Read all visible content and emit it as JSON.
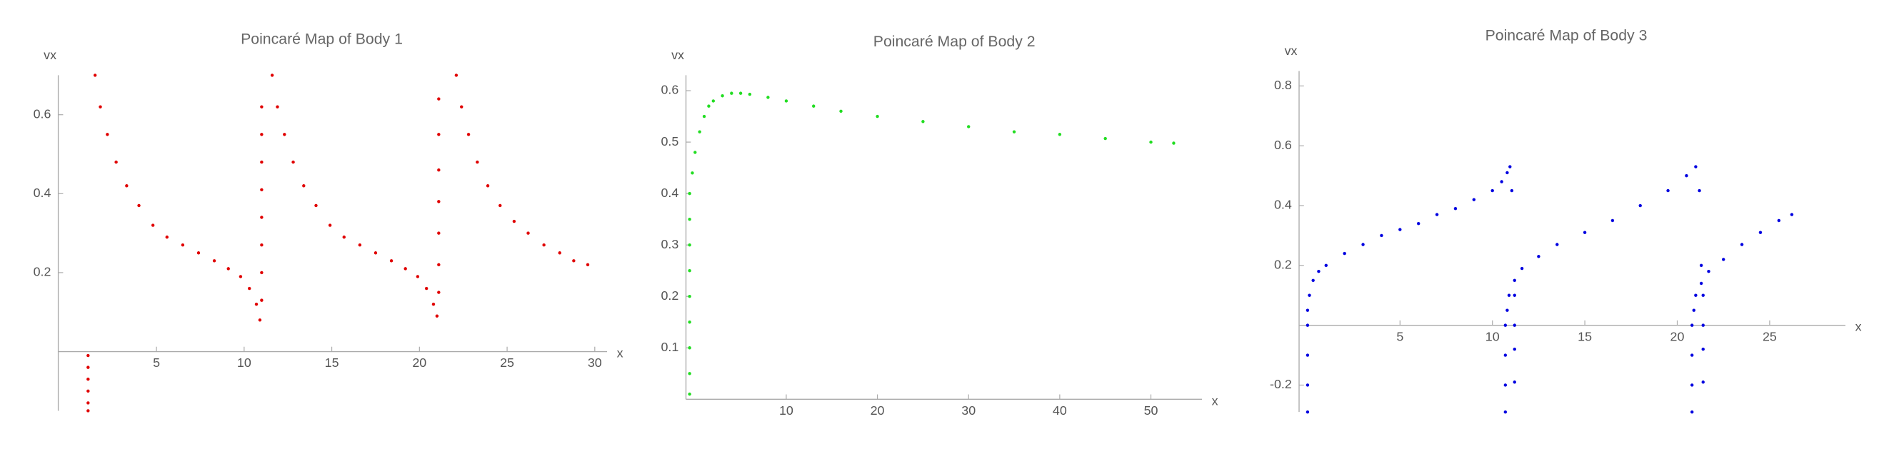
{
  "chart_data": [
    {
      "type": "scatter",
      "title": "Poincaré Map of Body 1",
      "x_label": "x",
      "y_label": "vx",
      "color": "#e00000",
      "xlim": [
        -0.6,
        30.7
      ],
      "ylim": [
        -0.15,
        0.7
      ],
      "xticks": [
        5,
        10,
        15,
        20,
        25,
        30
      ],
      "yticks": [
        0.2,
        0.4,
        0.6
      ],
      "x": [
        1.5,
        1.8,
        2.2,
        2.7,
        3.3,
        4,
        4.8,
        5.6,
        6.5,
        7.4,
        8.3,
        9.1,
        9.8,
        10.3,
        10.7,
        10.9,
        11,
        11,
        11,
        11,
        11,
        11,
        11,
        11,
        11.6,
        11.9,
        12.3,
        12.8,
        13.4,
        14.1,
        14.9,
        15.7,
        16.6,
        17.5,
        18.4,
        19.2,
        19.9,
        20.4,
        20.8,
        21,
        21.1,
        21.1,
        21.1,
        21.1,
        21.1,
        21.1,
        21.1,
        22.1,
        22.4,
        22.8,
        23.3,
        23.9,
        24.6,
        25.4,
        26.2,
        27.1,
        28,
        28.8,
        29.6,
        1.1,
        1.1,
        1.1,
        1.1,
        1.1,
        1.1
      ],
      "values": [
        0.7,
        0.62,
        0.55,
        0.48,
        0.42,
        0.37,
        0.32,
        0.29,
        0.27,
        0.25,
        0.23,
        0.21,
        0.19,
        0.16,
        0.12,
        0.08,
        0.13,
        0.2,
        0.27,
        0.34,
        0.41,
        0.48,
        0.55,
        0.62,
        0.7,
        0.62,
        0.55,
        0.48,
        0.42,
        0.37,
        0.32,
        0.29,
        0.27,
        0.25,
        0.23,
        0.21,
        0.19,
        0.16,
        0.12,
        0.09,
        0.15,
        0.22,
        0.3,
        0.38,
        0.46,
        0.55,
        0.64,
        0.7,
        0.62,
        0.55,
        0.48,
        0.42,
        0.37,
        0.33,
        0.3,
        0.27,
        0.25,
        0.23,
        0.22,
        -0.01,
        -0.04,
        -0.07,
        -0.1,
        -0.13,
        -0.15
      ]
    },
    {
      "type": "scatter",
      "title": "Poincaré Map of Body 2",
      "x_label": "x",
      "y_label": "vx",
      "color": "#22dd22",
      "xlim": [
        -1,
        55.6
      ],
      "ylim": [
        0,
        0.63
      ],
      "xticks": [
        10,
        20,
        30,
        40,
        50
      ],
      "yticks": [
        0.1,
        0.2,
        0.3,
        0.4,
        0.5,
        0.6
      ],
      "x": [
        -0.6,
        -0.6,
        -0.6,
        -0.6,
        -0.6,
        -0.6,
        -0.6,
        -0.6,
        -0.6,
        -0.3,
        0,
        0.5,
        1,
        1.5,
        2,
        3,
        4,
        5,
        6,
        8,
        10,
        13,
        16,
        20,
        25,
        30,
        35,
        40,
        45,
        50,
        52.5
      ],
      "values": [
        0.01,
        0.05,
        0.1,
        0.15,
        0.2,
        0.25,
        0.3,
        0.35,
        0.4,
        0.44,
        0.48,
        0.52,
        0.55,
        0.57,
        0.58,
        0.59,
        0.595,
        0.595,
        0.593,
        0.587,
        0.58,
        0.57,
        0.56,
        0.55,
        0.54,
        0.53,
        0.52,
        0.515,
        0.507,
        0.5,
        0.498
      ]
    },
    {
      "type": "scatter",
      "title": "Poincaré Map of Body 3",
      "x_label": "x",
      "y_label": "vx",
      "color": "#0000e0",
      "xlim": [
        -0.46,
        29.1
      ],
      "ylim": [
        -0.29,
        0.85
      ],
      "xticks": [
        5,
        10,
        15,
        20,
        25
      ],
      "yticks": [
        -0.2,
        0.2,
        0.4,
        0.6,
        0.8
      ],
      "x": [
        0,
        0,
        0,
        0,
        0,
        0.1,
        0.3,
        0.6,
        1,
        2,
        3,
        4,
        5,
        6,
        7,
        8,
        9,
        10,
        10.5,
        10.8,
        10.95,
        11.05,
        11.2,
        11.2,
        11.2,
        11.2,
        10.7,
        10.7,
        10.7,
        10.7,
        10.8,
        10.9,
        11.2,
        11.6,
        12.5,
        13.5,
        15,
        16.5,
        18,
        19.5,
        20.5,
        21,
        21.2,
        21.3,
        21.4,
        21.4,
        21.4,
        21.4,
        20.8,
        20.8,
        20.8,
        20.8,
        20.9,
        21,
        21.3,
        21.7,
        22.5,
        23.5,
        24.5,
        25.5,
        26.2
      ],
      "values": [
        -0.29,
        -0.2,
        -0.1,
        0,
        0.05,
        0.1,
        0.15,
        0.18,
        0.2,
        0.24,
        0.27,
        0.3,
        0.32,
        0.34,
        0.37,
        0.39,
        0.42,
        0.45,
        0.48,
        0.51,
        0.53,
        0.45,
        0.1,
        0,
        -0.08,
        -0.19,
        -0.29,
        -0.2,
        -0.1,
        0,
        0.05,
        0.1,
        0.15,
        0.19,
        0.23,
        0.27,
        0.31,
        0.35,
        0.4,
        0.45,
        0.5,
        0.53,
        0.45,
        0.2,
        0.1,
        0,
        -0.08,
        -0.19,
        -0.29,
        -0.2,
        -0.1,
        0,
        0.05,
        0.1,
        0.14,
        0.18,
        0.22,
        0.27,
        0.31,
        0.35,
        0.37
      ]
    }
  ]
}
